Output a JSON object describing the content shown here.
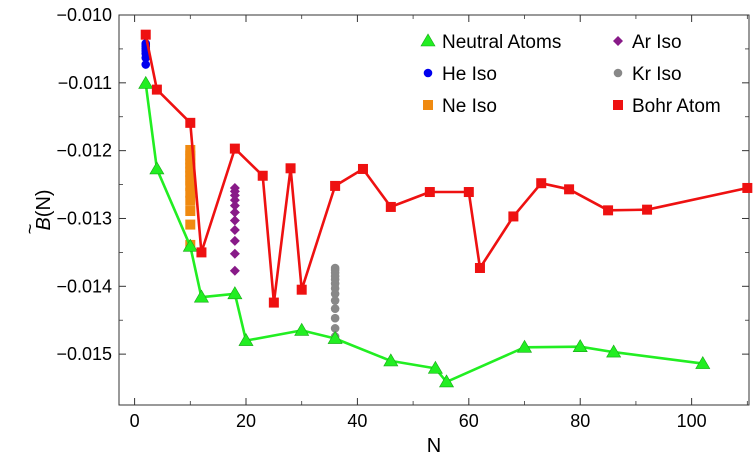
{
  "chart_data": {
    "type": "line",
    "xlabel": "N",
    "ylabel_main": "B",
    "ylabel_accent": "~",
    "ylabel_arg": "(N)",
    "xlim": [
      -2.8,
      110.3
    ],
    "ylim": [
      -0.01575,
      -0.01
    ],
    "xticks": [
      {
        "value": 0,
        "label": "0"
      },
      {
        "value": 20,
        "label": "20"
      },
      {
        "value": 40,
        "label": "40"
      },
      {
        "value": 60,
        "label": "60"
      },
      {
        "value": 80,
        "label": "80"
      },
      {
        "value": 100,
        "label": "100"
      }
    ],
    "yticks": [
      {
        "value": -0.01,
        "label": "−0.010"
      },
      {
        "value": -0.011,
        "label": "−0.011"
      },
      {
        "value": -0.012,
        "label": "−0.012"
      },
      {
        "value": -0.013,
        "label": "−0.013"
      },
      {
        "value": -0.014,
        "label": "−0.014"
      },
      {
        "value": -0.015,
        "label": "−0.015"
      }
    ],
    "legend_placement": "top-right",
    "series": [
      {
        "name": "Neutral Atoms",
        "color": "#22ee22",
        "marker": "triangle",
        "line": true,
        "x": [
          2,
          4,
          10,
          12,
          18,
          20,
          30,
          36,
          46,
          54,
          56,
          70,
          80,
          86,
          102
        ],
        "y": [
          -0.01101,
          -0.01227,
          -0.01341,
          -0.01416,
          -0.01411,
          -0.0148,
          -0.01465,
          -0.01477,
          -0.0151,
          -0.01521,
          -0.01541,
          -0.0149,
          -0.01489,
          -0.01497,
          -0.01514
        ]
      },
      {
        "name": "He Iso",
        "color": "#0000ee",
        "marker": "circle",
        "line": false,
        "x": [
          2,
          2,
          2,
          2,
          2,
          2,
          2,
          2
        ],
        "y": [
          -0.01073,
          -0.01063,
          -0.01057,
          -0.01053,
          -0.01049,
          -0.01046,
          -0.01044,
          -0.01042
        ]
      },
      {
        "name": "Ne Iso",
        "color": "#f08a10",
        "marker": "square",
        "line": false,
        "x": [
          10,
          10,
          10,
          10,
          10,
          10,
          10,
          10,
          10,
          10,
          10,
          10,
          10,
          10
        ],
        "y": [
          -0.01339,
          -0.01309,
          -0.01289,
          -0.01274,
          -0.01262,
          -0.01252,
          -0.01244,
          -0.01237,
          -0.01231,
          -0.01225,
          -0.01219,
          -0.01213,
          -0.01207,
          -0.01199
        ]
      },
      {
        "name": "Ar Iso",
        "color": "#881a88",
        "marker": "diamond",
        "line": false,
        "x": [
          18,
          18,
          18,
          18,
          18,
          18,
          18,
          18,
          18,
          18,
          18,
          18
        ],
        "y": [
          -0.01412,
          -0.01377,
          -0.01352,
          -0.01333,
          -0.01317,
          -0.01303,
          -0.01291,
          -0.01281,
          -0.01273,
          -0.01266,
          -0.0126,
          -0.01255
        ]
      },
      {
        "name": "Kr Iso",
        "color": "#888888",
        "marker": "circle",
        "line": false,
        "x": [
          36,
          36,
          36,
          36,
          36,
          36,
          36,
          36,
          36,
          36,
          36,
          36,
          36
        ],
        "y": [
          -0.01474,
          -0.01462,
          -0.01447,
          -0.01433,
          -0.01421,
          -0.01411,
          -0.01403,
          -0.01396,
          -0.0139,
          -0.01385,
          -0.0138,
          -0.01376,
          -0.01373
        ]
      },
      {
        "name": "Bohr Atom",
        "color": "#ee1111",
        "marker": "square",
        "line": true,
        "x": [
          2,
          4,
          10,
          12,
          18,
          23,
          25,
          28,
          30,
          36,
          41,
          46,
          53,
          60,
          62,
          68,
          73,
          78,
          85,
          92,
          110
        ],
        "y": [
          -0.01029,
          -0.0111,
          -0.01159,
          -0.0135,
          -0.01197,
          -0.01237,
          -0.01424,
          -0.01226,
          -0.01405,
          -0.01252,
          -0.01227,
          -0.01283,
          -0.01261,
          -0.01261,
          -0.01373,
          -0.01297,
          -0.01248,
          -0.01257,
          -0.01288,
          -0.01287,
          -0.01255
        ]
      }
    ]
  }
}
